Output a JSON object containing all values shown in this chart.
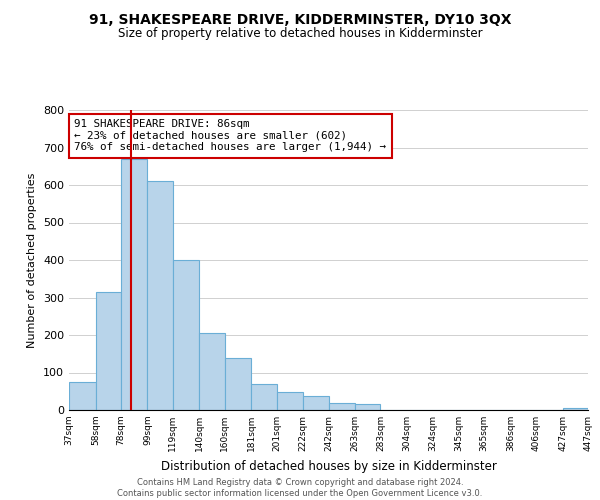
{
  "title": "91, SHAKESPEARE DRIVE, KIDDERMINSTER, DY10 3QX",
  "subtitle": "Size of property relative to detached houses in Kidderminster",
  "xlabel": "Distribution of detached houses by size in Kidderminster",
  "ylabel": "Number of detached properties",
  "bin_edges": [
    37,
    58,
    78,
    99,
    119,
    140,
    160,
    181,
    201,
    222,
    242,
    263,
    283,
    304,
    324,
    345,
    365,
    386,
    406,
    427,
    447
  ],
  "bar_heights": [
    75,
    315,
    670,
    610,
    400,
    205,
    138,
    70,
    48,
    38,
    20,
    15,
    0,
    0,
    0,
    0,
    0,
    0,
    0,
    5
  ],
  "bar_color": "#b8d4ea",
  "bar_edge_color": "#6aaed6",
  "vline_x": 86,
  "vline_color": "#cc0000",
  "annotation_text_line1": "91 SHAKESPEARE DRIVE: 86sqm",
  "annotation_text_line2": "← 23% of detached houses are smaller (602)",
  "annotation_text_line3": "76% of semi-detached houses are larger (1,944) →",
  "ylim": [
    0,
    800
  ],
  "yticks": [
    0,
    100,
    200,
    300,
    400,
    500,
    600,
    700,
    800
  ],
  "footer_line1": "Contains HM Land Registry data © Crown copyright and database right 2024.",
  "footer_line2": "Contains public sector information licensed under the Open Government Licence v3.0.",
  "background_color": "#ffffff",
  "grid_color": "#d0d0d0"
}
